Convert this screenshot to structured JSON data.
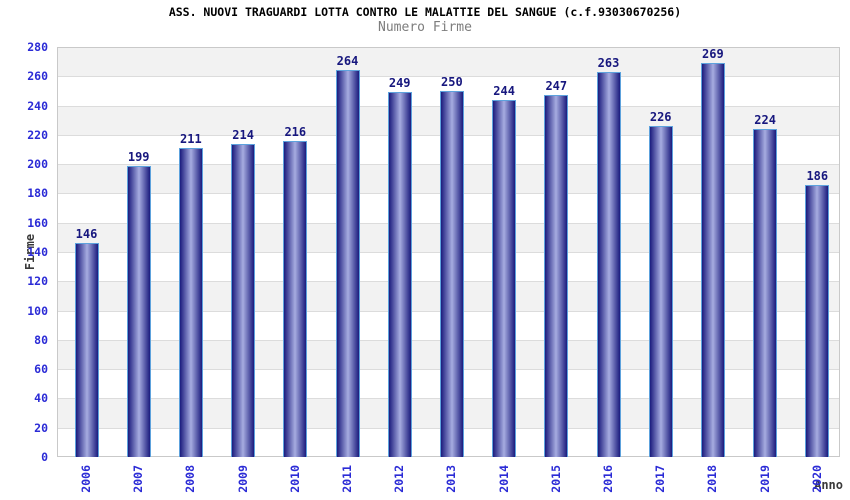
{
  "chart_data": {
    "type": "bar",
    "title": "ASS. NUOVI TRAGUARDI LOTTA CONTRO LE MALATTIE DEL SANGUE (c.f.93030670256)",
    "subtitle": "Numero Firme",
    "xlabel": "Anno",
    "ylabel": "Firme",
    "categories": [
      "2006",
      "2007",
      "2008",
      "2009",
      "2010",
      "2011",
      "2012",
      "2013",
      "2014",
      "2015",
      "2016",
      "2017",
      "2018",
      "2019",
      "2020"
    ],
    "values": [
      146,
      199,
      211,
      214,
      216,
      264,
      249,
      250,
      244,
      247,
      263,
      226,
      269,
      224,
      186
    ],
    "ylim": [
      0,
      280
    ],
    "ytick_step": 20,
    "grid": true,
    "legend": "none",
    "colors": {
      "title": "#000000",
      "subtitle": "#7d7d7d",
      "axis_text": "#2b2bd6",
      "value_label": "#17177e",
      "axis_title": "#3a3a3a",
      "bar_edge": "#1b1b7d",
      "bar_mid": "#a6ace0",
      "bar_border": "#5da2dd",
      "band": "#f2f2f2",
      "gridline": "#dcdcdc",
      "plot_border": "#c9c9c9",
      "background": "#ffffff"
    }
  }
}
